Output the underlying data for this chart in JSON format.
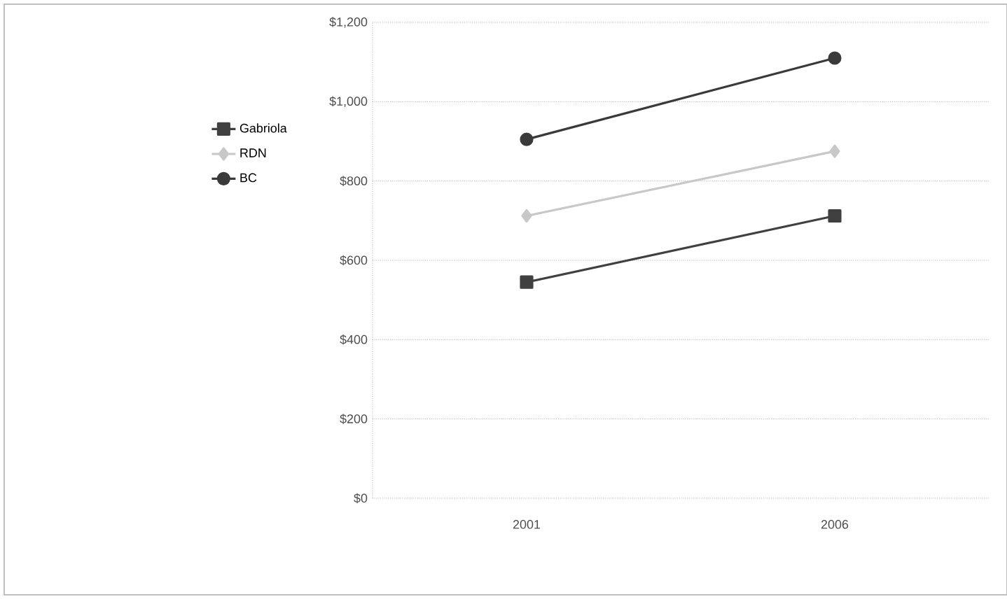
{
  "chart_data": {
    "type": "line",
    "categories": [
      "2001",
      "2006"
    ],
    "series": [
      {
        "name": "Gabriola",
        "color": "#404040",
        "marker": "square",
        "values": [
          545,
          712
        ]
      },
      {
        "name": "RDN",
        "color": "#c8c8c8",
        "marker": "diamond",
        "values": [
          712,
          875
        ]
      },
      {
        "name": "BC",
        "color": "#3a3a3a",
        "marker": "circle",
        "values": [
          905,
          1110
        ]
      }
    ],
    "ylim": [
      0,
      1200
    ],
    "yticks": [
      {
        "value": 0,
        "label": "$0"
      },
      {
        "value": 200,
        "label": "$200"
      },
      {
        "value": 400,
        "label": "$400"
      },
      {
        "value": 600,
        "label": "$600"
      },
      {
        "value": 800,
        "label": "$800"
      },
      {
        "value": 1000,
        "label": "$1,000"
      },
      {
        "value": 1200,
        "label": "$1,200"
      }
    ],
    "grid": "y",
    "legend": "left",
    "line_style": "solid"
  }
}
